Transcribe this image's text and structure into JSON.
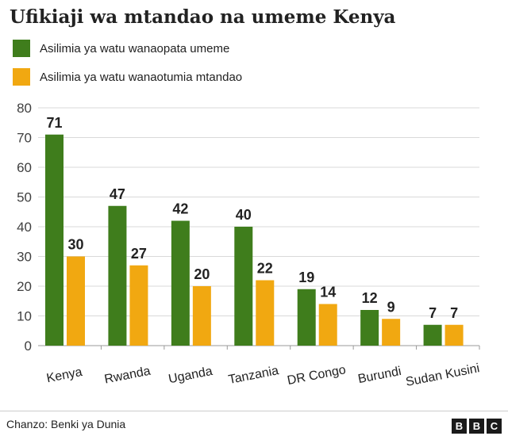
{
  "title": "Ufikiaji wa mtandao na umeme  Kenya",
  "source": "Chanzo: Benki ya Dunia",
  "logo": [
    "B",
    "B",
    "C"
  ],
  "chart_data": {
    "type": "bar",
    "categories": [
      "Kenya",
      "Rwanda",
      "Uganda",
      "Tanzania",
      "DR Congo",
      "Burundi",
      "Sudan Kusini"
    ],
    "series": [
      {
        "name": "Asilimia ya watu wanaopata umeme",
        "color": "#3f7d1c",
        "values": [
          71,
          47,
          42,
          40,
          19,
          12,
          7
        ]
      },
      {
        "name": "Asilimia ya watu wanaotumia mtandao",
        "color": "#f1a811",
        "values": [
          30,
          27,
          20,
          22,
          14,
          9,
          7
        ]
      }
    ],
    "ylim": [
      0,
      80
    ],
    "yticks": [
      0,
      10,
      20,
      30,
      40,
      50,
      60,
      70,
      80
    ],
    "grid": true,
    "legend": "top-left",
    "data_labels": true
  }
}
